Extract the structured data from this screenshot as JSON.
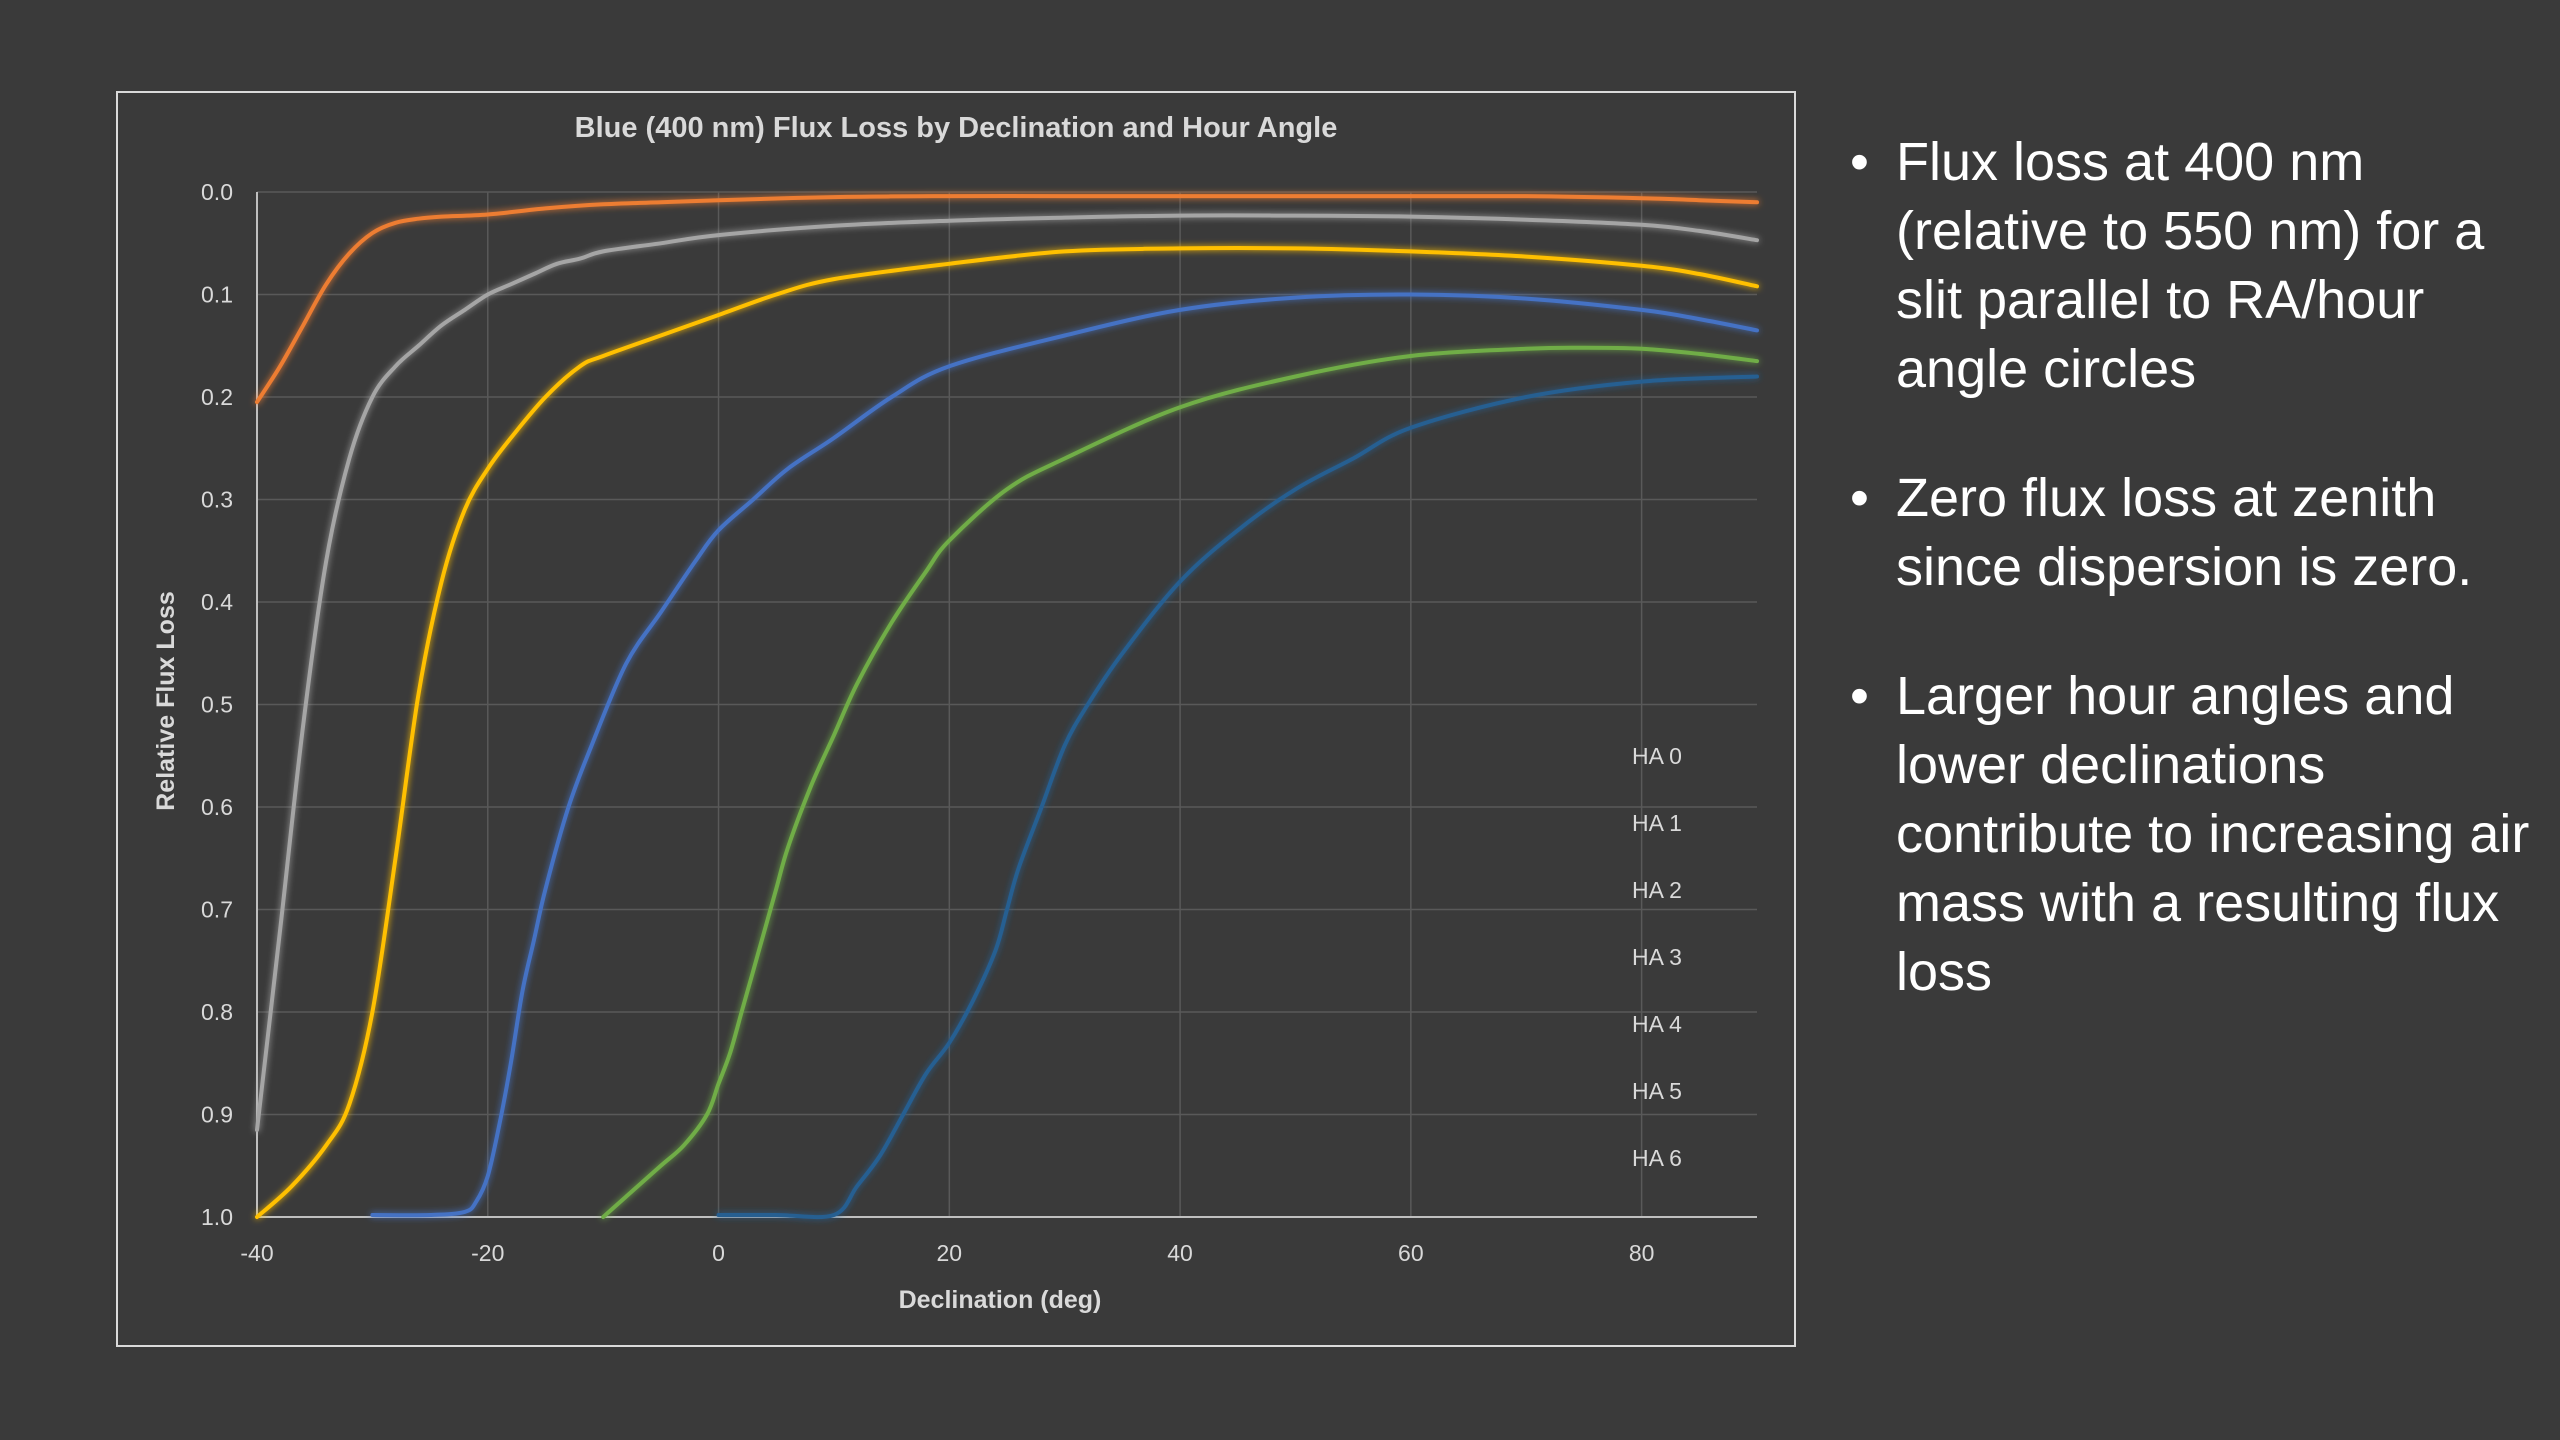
{
  "slide": {
    "bullets": [
      "Flux loss at 400 nm (relative to 550 nm) for a slit parallel to RA/hour angle circles",
      "Zero flux loss at zenith since dispersion is zero.",
      "Larger hour angles and lower declinations contribute to increasing air mass with a resulting flux loss"
    ],
    "bullet_glyph": "•"
  },
  "chart_data": {
    "type": "line",
    "title": "Blue (400 nm) Flux Loss by Declination and Hour Angle",
    "xlabel": "Declination (deg)",
    "ylabel": "Relative Flux Loss",
    "xlim": [
      -40,
      90
    ],
    "ylim": [
      0.0,
      1.0
    ],
    "y_reversed": true,
    "x_ticks": [
      -40,
      -20,
      0,
      20,
      40,
      60,
      80
    ],
    "x_tick_labels": [
      "-40",
      "-20",
      "0",
      "20",
      "40",
      "60",
      "80"
    ],
    "y_ticks": [
      0,
      0.1,
      0.2,
      0.3,
      0.4,
      0.5,
      0.6,
      0.7,
      0.8,
      0.9,
      1.0
    ],
    "y_tick_labels": [
      "0.0",
      "0.1",
      "0.2",
      "0.3",
      "0.4",
      "0.5",
      "0.6",
      "0.7",
      "0.8",
      "0.9",
      "1.0"
    ],
    "grid": true,
    "legend_position": "right",
    "series": [
      {
        "name": "HA 0",
        "color": "#5b9bd5",
        "x": [
          -40,
          90
        ],
        "y": [
          0.0,
          0.0
        ]
      },
      {
        "name": "HA 1",
        "color": "#ed7d31",
        "x": [
          -40,
          -38,
          -36,
          -34,
          -32,
          -30,
          -28,
          -26,
          -24,
          -20,
          -15,
          -10,
          -5,
          0,
          10,
          20,
          30,
          40,
          50,
          60,
          70,
          80,
          85,
          90
        ],
        "y": [
          0.205,
          0.17,
          0.13,
          0.09,
          0.06,
          0.04,
          0.03,
          0.026,
          0.024,
          0.022,
          0.016,
          0.012,
          0.01,
          0.008,
          0.005,
          0.004,
          0.004,
          0.004,
          0.004,
          0.004,
          0.004,
          0.006,
          0.008,
          0.01
        ]
      },
      {
        "name": "HA 2",
        "color": "#a5a5a5",
        "x": [
          -40,
          -38,
          -36,
          -34,
          -32,
          -30,
          -28,
          -26,
          -24,
          -22,
          -20,
          -18,
          -16,
          -14,
          -12,
          -10,
          -5,
          0,
          10,
          20,
          30,
          40,
          50,
          60,
          70,
          80,
          85,
          90
        ],
        "y": [
          0.915,
          0.72,
          0.52,
          0.36,
          0.26,
          0.2,
          0.17,
          0.15,
          0.13,
          0.115,
          0.1,
          0.09,
          0.08,
          0.07,
          0.065,
          0.058,
          0.05,
          0.042,
          0.033,
          0.028,
          0.025,
          0.023,
          0.023,
          0.024,
          0.027,
          0.032,
          0.038,
          0.047
        ]
      },
      {
        "name": "HA 3",
        "color": "#ffc000",
        "x": [
          -40,
          -37,
          -34,
          -32,
          -30,
          -28,
          -26,
          -24,
          -22,
          -20,
          -18,
          -15,
          -12,
          -10,
          -5,
          0,
          5,
          10,
          20,
          30,
          40,
          50,
          60,
          70,
          80,
          85,
          90
        ],
        "y": [
          1.0,
          0.97,
          0.93,
          0.89,
          0.8,
          0.65,
          0.49,
          0.38,
          0.31,
          0.27,
          0.24,
          0.2,
          0.17,
          0.16,
          0.14,
          0.12,
          0.1,
          0.085,
          0.07,
          0.058,
          0.055,
          0.055,
          0.058,
          0.063,
          0.072,
          0.08,
          0.092
        ]
      },
      {
        "name": "HA 4",
        "color": "#4472c4",
        "x": [
          -30,
          -25,
          -22,
          -21,
          -20,
          -19,
          -18,
          -17,
          -16,
          -15,
          -13,
          -11,
          -8,
          -5,
          -2,
          0,
          3,
          6,
          10,
          15,
          20,
          30,
          40,
          50,
          60,
          70,
          80,
          85,
          90
        ],
        "y": [
          0.998,
          0.998,
          0.995,
          0.985,
          0.96,
          0.91,
          0.85,
          0.78,
          0.73,
          0.68,
          0.6,
          0.54,
          0.46,
          0.41,
          0.36,
          0.33,
          0.3,
          0.27,
          0.24,
          0.2,
          0.17,
          0.14,
          0.115,
          0.103,
          0.1,
          0.104,
          0.115,
          0.124,
          0.135
        ]
      },
      {
        "name": "HA 5",
        "color": "#70ad47",
        "x": [
          -10,
          -8,
          -5,
          -3,
          -1,
          0,
          1,
          2,
          3,
          4,
          5,
          6,
          8,
          10,
          12,
          15,
          18,
          20,
          25,
          30,
          40,
          50,
          60,
          70,
          75,
          80,
          85,
          90
        ],
        "y": [
          1.0,
          0.98,
          0.95,
          0.93,
          0.9,
          0.87,
          0.84,
          0.8,
          0.76,
          0.72,
          0.68,
          0.64,
          0.58,
          0.53,
          0.48,
          0.42,
          0.37,
          0.34,
          0.29,
          0.26,
          0.21,
          0.18,
          0.16,
          0.153,
          0.152,
          0.153,
          0.158,
          0.165
        ]
      },
      {
        "name": "HA 6",
        "color": "#255e91",
        "x": [
          0,
          5,
          10,
          12,
          14,
          16,
          18,
          20,
          22,
          24,
          25,
          26,
          28,
          30,
          32,
          35,
          40,
          45,
          50,
          55,
          60,
          70,
          80,
          90
        ],
        "y": [
          0.998,
          0.998,
          0.998,
          0.97,
          0.94,
          0.9,
          0.86,
          0.83,
          0.79,
          0.74,
          0.7,
          0.66,
          0.6,
          0.54,
          0.5,
          0.45,
          0.38,
          0.33,
          0.29,
          0.26,
          0.23,
          0.2,
          0.185,
          0.18
        ]
      }
    ]
  }
}
